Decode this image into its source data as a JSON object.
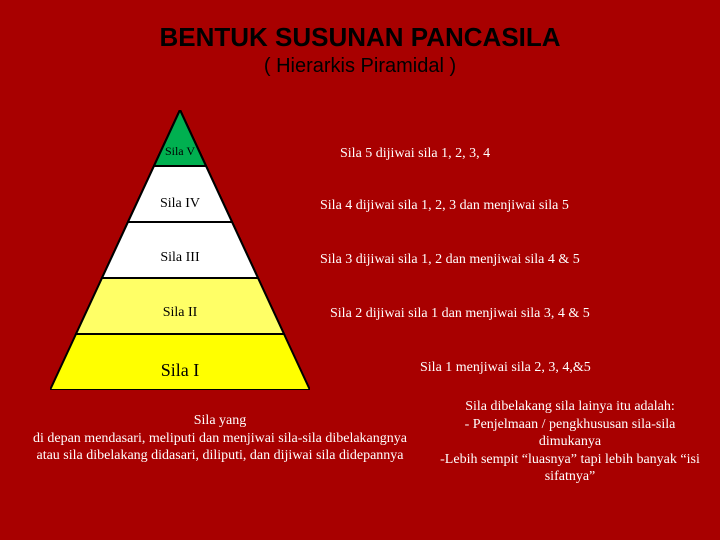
{
  "background_color": "#a80000",
  "title": "BENTUK SUSUNAN PANCASILA",
  "subtitle": "( Hierarkis Piramidal )",
  "title_color": "#000000",
  "pyramid": {
    "outline_color": "#000000",
    "outline_width": 2,
    "levels": [
      {
        "label": "Sila V",
        "fill": "#00b050",
        "label_color": "#000000"
      },
      {
        "label": "Sila IV",
        "fill": "#ffffff",
        "label_color": "#000000"
      },
      {
        "label": "Sila III",
        "fill": "#ffffff",
        "label_color": "#000000"
      },
      {
        "label": "Sila II",
        "fill": "#ffff66",
        "label_color": "#000000"
      },
      {
        "label": "Sila I",
        "fill": "#ffff00",
        "label_color": "#000000"
      }
    ]
  },
  "descriptions": {
    "sila5": "Sila 5 dijiwai sila 1, 2, 3, 4",
    "sila4": "Sila 4 dijiwai sila 1, 2, 3  dan  menjiwai sila  5",
    "sila3": "Sila 3 dijiwai sila 1, 2  dan  menjiwai sila 4 & 5",
    "sila2": "Sila 2 dijiwai sila 1 dan  menjiwai sila 3, 4 & 5",
    "sila1": "Sila 1 menjiwai sila 2, 3, 4,&5"
  },
  "bottom_left": "Sila yang\ndi depan  mendasari, meliputi  dan menjiwai sila-sila dibelakangnya atau sila dibelakang didasari, diliputi, dan dijiwai sila didepannya",
  "bottom_right": "Sila dibelakang sila lainya itu adalah:\n- Penjelmaan / pengkhususan sila-sila dimukanya\n-Lebih sempit “luasnya” tapi lebih banyak “isi sifatnya”",
  "desc_color": "#ffffff"
}
